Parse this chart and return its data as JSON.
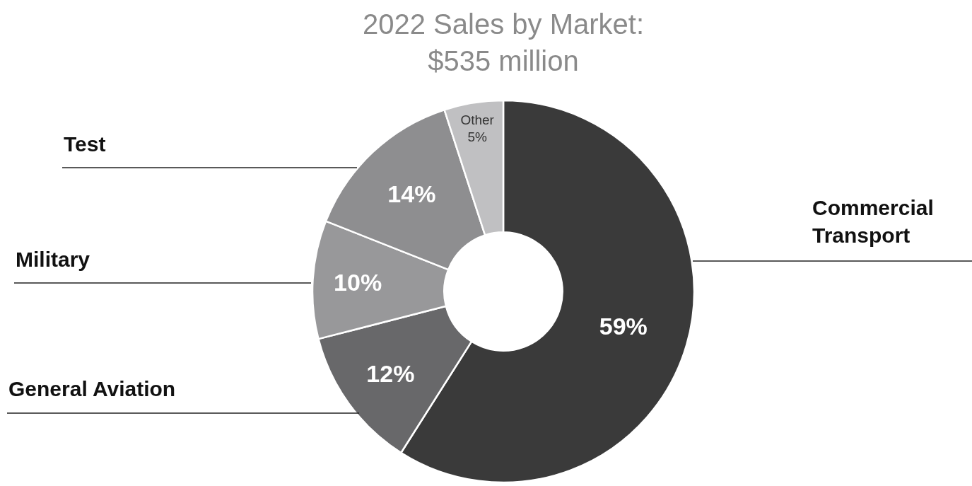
{
  "chart_data": {
    "type": "donut",
    "title": "2022 Sales by Market:\n$535 million",
    "categories": [
      "Commercial\nTransport",
      "General Aviation",
      "Military",
      "Test",
      "Other"
    ],
    "values": [
      59,
      12,
      10,
      14,
      5
    ],
    "value_labels": [
      "59%",
      "12%",
      "10%",
      "14%",
      "5%"
    ],
    "colors": [
      "#3a3a3a",
      "#68686a",
      "#98989a",
      "#8e8e90",
      "#c0c0c2"
    ],
    "legend": false
  }
}
